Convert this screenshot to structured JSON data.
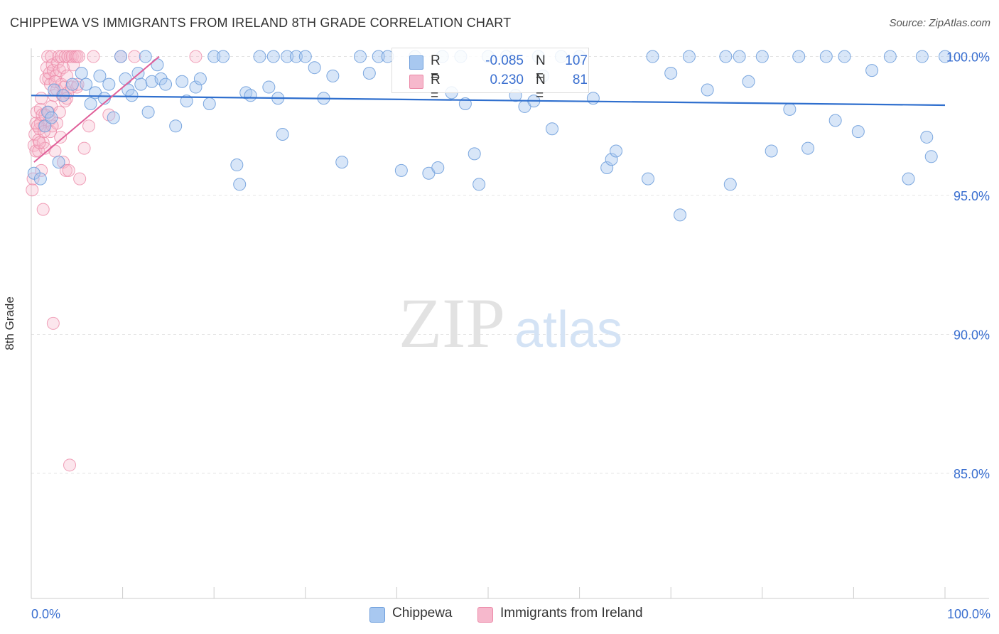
{
  "title": "CHIPPEWA VS IMMIGRANTS FROM IRELAND 8TH GRADE CORRELATION CHART",
  "source": "Source: ZipAtlas.com",
  "watermark": {
    "zip": "ZIP",
    "atlas": "atlas"
  },
  "legend_top": {
    "rows": [
      {
        "r_label": "R =",
        "r_value": "-0.085",
        "n_label": "N =",
        "n_value": "107"
      },
      {
        "r_label": "R =",
        "r_value": "0.230",
        "n_label": "N =",
        "n_value": "81"
      }
    ]
  },
  "legend_bottom": {
    "series1": "Chippewa",
    "series2": "Immigrants from Ireland"
  },
  "chart_data": {
    "type": "scatter",
    "title": "CHIPPEWA VS IMMIGRANTS FROM IRELAND 8TH GRADE CORRELATION CHART",
    "xlabel": "",
    "ylabel": "8th Grade",
    "xlim": [
      0,
      100
    ],
    "ylim": [
      80.5,
      100.5
    ],
    "x_tick_labels": {
      "left": "0.0%",
      "right": "100.0%"
    },
    "y_ticks": [
      {
        "value": 100,
        "label": "100.0%"
      },
      {
        "value": 95,
        "label": "95.0%"
      },
      {
        "value": 90,
        "label": "90.0%"
      },
      {
        "value": 85,
        "label": "85.0%"
      }
    ],
    "grid": true,
    "colors": {
      "chippewa_fill": "#a8c8f0",
      "chippewa_stroke": "#6f9fdc",
      "chippewa_line": "#2f6fce",
      "ireland_fill": "#f6b8cc",
      "ireland_stroke": "#ec8aa8",
      "ireland_line": "#e0609a",
      "axis_label": "#3a6fd0"
    },
    "series": [
      {
        "name": "Chippewa",
        "R": -0.085,
        "N": 107,
        "trend": {
          "x": [
            0,
            100
          ],
          "y": [
            98.6,
            98.25
          ]
        },
        "points": [
          [
            0.3,
            95.8
          ],
          [
            1.0,
            95.6
          ],
          [
            1.5,
            97.5
          ],
          [
            1.8,
            98.0
          ],
          [
            2.2,
            97.8
          ],
          [
            2.5,
            98.8
          ],
          [
            3.0,
            96.2
          ],
          [
            3.5,
            98.6
          ],
          [
            4.5,
            99.0
          ],
          [
            5.5,
            99.4
          ],
          [
            6.0,
            99.0
          ],
          [
            6.5,
            98.3
          ],
          [
            7.0,
            98.7
          ],
          [
            7.5,
            99.3
          ],
          [
            8.0,
            98.5
          ],
          [
            8.5,
            99.0
          ],
          [
            9.0,
            97.8
          ],
          [
            9.8,
            100
          ],
          [
            10.3,
            99.2
          ],
          [
            10.6,
            98.8
          ],
          [
            11.0,
            98.6
          ],
          [
            11.7,
            99.4
          ],
          [
            12.0,
            99.0
          ],
          [
            12.5,
            100
          ],
          [
            12.8,
            98.0
          ],
          [
            13.2,
            99.1
          ],
          [
            13.8,
            99.7
          ],
          [
            14.2,
            99.2
          ],
          [
            14.7,
            99.0
          ],
          [
            15.8,
            97.5
          ],
          [
            16.5,
            99.1
          ],
          [
            17.0,
            98.4
          ],
          [
            18.0,
            98.9
          ],
          [
            18.5,
            99.2
          ],
          [
            19.5,
            98.3
          ],
          [
            20.0,
            100
          ],
          [
            21.0,
            100
          ],
          [
            22.5,
            96.1
          ],
          [
            22.8,
            95.4
          ],
          [
            23.5,
            98.7
          ],
          [
            24.0,
            98.6
          ],
          [
            25.0,
            100
          ],
          [
            26.0,
            98.9
          ],
          [
            26.5,
            100
          ],
          [
            27.0,
            98.5
          ],
          [
            27.5,
            97.2
          ],
          [
            28.0,
            100
          ],
          [
            29.0,
            100
          ],
          [
            30.0,
            100
          ],
          [
            31.0,
            99.6
          ],
          [
            32.0,
            98.5
          ],
          [
            33.0,
            99.3
          ],
          [
            34.0,
            96.2
          ],
          [
            36.0,
            100
          ],
          [
            37.0,
            99.4
          ],
          [
            38.0,
            100
          ],
          [
            39.0,
            100
          ],
          [
            40.5,
            95.9
          ],
          [
            42.0,
            100
          ],
          [
            43.5,
            95.8
          ],
          [
            44.5,
            96.0
          ],
          [
            45.0,
            100
          ],
          [
            46.0,
            98.7
          ],
          [
            47.0,
            100
          ],
          [
            47.5,
            98.3
          ],
          [
            48.5,
            96.5
          ],
          [
            49.0,
            95.4
          ],
          [
            50.0,
            100
          ],
          [
            52.0,
            100
          ],
          [
            53.0,
            98.6
          ],
          [
            54.0,
            98.2
          ],
          [
            55.0,
            98.4
          ],
          [
            55.5,
            100
          ],
          [
            56.0,
            99.3
          ],
          [
            57.0,
            97.4
          ],
          [
            58.0,
            100
          ],
          [
            60.0,
            100
          ],
          [
            61.5,
            98.5
          ],
          [
            63.0,
            96.0
          ],
          [
            63.5,
            96.3
          ],
          [
            64.0,
            96.6
          ],
          [
            67.5,
            95.6
          ],
          [
            68.0,
            100
          ],
          [
            70.0,
            99.4
          ],
          [
            71.0,
            94.3
          ],
          [
            72.0,
            100
          ],
          [
            74.0,
            98.8
          ],
          [
            76.0,
            100
          ],
          [
            76.5,
            95.4
          ],
          [
            77.5,
            100
          ],
          [
            78.5,
            99.1
          ],
          [
            80.0,
            100
          ],
          [
            81.0,
            96.6
          ],
          [
            83.0,
            98.1
          ],
          [
            84.0,
            100
          ],
          [
            85.0,
            96.7
          ],
          [
            87.0,
            100
          ],
          [
            88.0,
            97.7
          ],
          [
            89.0,
            100
          ],
          [
            90.5,
            97.3
          ],
          [
            92.0,
            99.5
          ],
          [
            94.0,
            100
          ],
          [
            96.0,
            95.6
          ],
          [
            97.5,
            100
          ],
          [
            98.0,
            97.1
          ],
          [
            98.5,
            96.4
          ],
          [
            100.0,
            100
          ]
        ]
      },
      {
        "name": "Immigrants from Ireland",
        "R": 0.23,
        "N": 81,
        "trend": {
          "x": [
            0.3,
            14.0
          ],
          "y": [
            96.2,
            100.0
          ]
        },
        "points": [
          [
            0.1,
            95.2
          ],
          [
            0.2,
            95.6
          ],
          [
            0.3,
            96.8
          ],
          [
            0.4,
            97.2
          ],
          [
            0.5,
            97.6
          ],
          [
            0.5,
            96.6
          ],
          [
            0.6,
            98.0
          ],
          [
            0.8,
            97.0
          ],
          [
            0.8,
            96.6
          ],
          [
            0.9,
            97.4
          ],
          [
            1.0,
            98.1
          ],
          [
            1.0,
            97.6
          ],
          [
            1.1,
            95.9
          ],
          [
            1.1,
            98.5
          ],
          [
            1.2,
            97.9
          ],
          [
            1.3,
            96.9
          ],
          [
            1.3,
            94.5
          ],
          [
            1.4,
            97.5
          ],
          [
            1.5,
            96.7
          ],
          [
            1.6,
            99.2
          ],
          [
            1.7,
            99.6
          ],
          [
            1.8,
            100
          ],
          [
            1.9,
            99.2
          ],
          [
            1.9,
            98.0
          ],
          [
            2.0,
            99.4
          ],
          [
            2.0,
            97.7
          ],
          [
            2.1,
            97.3
          ],
          [
            2.1,
            99.0
          ],
          [
            2.2,
            100
          ],
          [
            2.2,
            98.2
          ],
          [
            2.3,
            99.7
          ],
          [
            2.4,
            99.5
          ],
          [
            2.4,
            90.4
          ],
          [
            2.5,
            98.6
          ],
          [
            2.6,
            96.6
          ],
          [
            2.7,
            99.3
          ],
          [
            2.8,
            98.8
          ],
          [
            2.8,
            97.6
          ],
          [
            2.9,
            99.8
          ],
          [
            3.0,
            100
          ],
          [
            3.1,
            99.5
          ],
          [
            3.1,
            98.0
          ],
          [
            3.2,
            97.1
          ],
          [
            3.3,
            100
          ],
          [
            3.3,
            99.0
          ],
          [
            3.4,
            98.6
          ],
          [
            3.5,
            99.6
          ],
          [
            3.5,
            96.2
          ],
          [
            3.6,
            98.9
          ],
          [
            3.7,
            100
          ],
          [
            3.7,
            98.4
          ],
          [
            3.8,
            95.9
          ],
          [
            3.9,
            99.3
          ],
          [
            4.0,
            100
          ],
          [
            4.0,
            98.7
          ],
          [
            4.1,
            95.9
          ],
          [
            4.2,
            85.3
          ],
          [
            4.3,
            100
          ],
          [
            4.4,
            98.9
          ],
          [
            4.5,
            100
          ],
          [
            4.6,
            99.7
          ],
          [
            4.8,
            100
          ],
          [
            5.0,
            98.9
          ],
          [
            5.0,
            100
          ],
          [
            5.1,
            99.0
          ],
          [
            5.2,
            100
          ],
          [
            5.3,
            95.6
          ],
          [
            5.8,
            96.7
          ],
          [
            6.3,
            97.5
          ],
          [
            6.8,
            100
          ],
          [
            8.5,
            97.9
          ],
          [
            9.8,
            100
          ],
          [
            11.3,
            100
          ],
          [
            18.0,
            100
          ],
          [
            0.7,
            97.5
          ],
          [
            1.4,
            97.3
          ],
          [
            2.6,
            99.1
          ],
          [
            3.9,
            98.5
          ],
          [
            1.5,
            97.9
          ],
          [
            0.9,
            96.9
          ],
          [
            2.3,
            97.5
          ]
        ]
      }
    ]
  }
}
